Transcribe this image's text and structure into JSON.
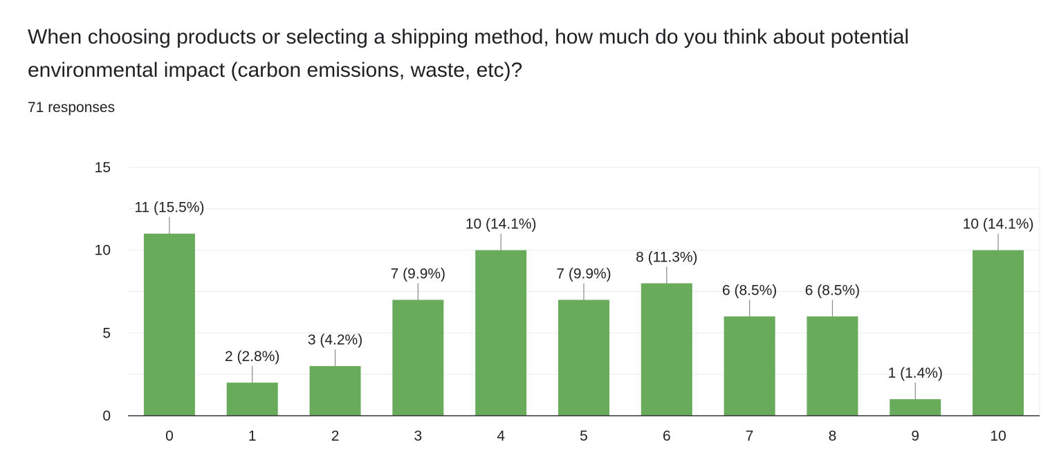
{
  "question": {
    "title": "When choosing products or selecting a shipping method, how much do you think about potential environmental impact (carbon emissions, waste, etc)?",
    "response_count": "71 responses"
  },
  "colors": {
    "bar": "#67ab5b",
    "grid": "#ebebeb",
    "axis": "#333333",
    "leader": "#888888"
  },
  "chart_data": {
    "type": "bar",
    "categories": [
      "0",
      "1",
      "2",
      "3",
      "4",
      "5",
      "6",
      "7",
      "8",
      "9",
      "10"
    ],
    "values": [
      11,
      2,
      3,
      7,
      10,
      7,
      8,
      6,
      6,
      1,
      10
    ],
    "data_labels": [
      "11 (15.5%)",
      "2 (2.8%)",
      "3 (4.2%)",
      "7 (9.9%)",
      "10 (14.1%)",
      "7 (9.9%)",
      "8 (11.3%)",
      "6 (8.5%)",
      "6 (8.5%)",
      "1 (1.4%)",
      "10 (14.1%)"
    ],
    "yticks": [
      "0",
      "5",
      "10",
      "15"
    ],
    "ylim": [
      0,
      15
    ],
    "grid": true
  }
}
